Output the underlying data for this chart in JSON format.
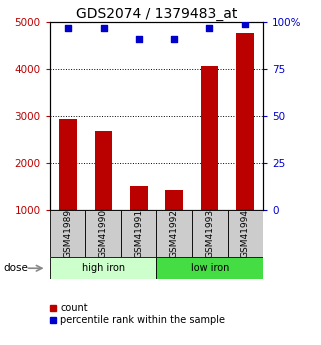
{
  "title": "GDS2074 / 1379483_at",
  "samples": [
    "GSM41989",
    "GSM41990",
    "GSM41991",
    "GSM41992",
    "GSM41993",
    "GSM41994"
  ],
  "bar_values": [
    2950,
    2700,
    1530,
    1440,
    4080,
    4780
  ],
  "percentile_values": [
    97,
    97,
    91,
    91,
    97,
    99
  ],
  "ylim_left": [
    1000,
    5000
  ],
  "ylim_right": [
    0,
    100
  ],
  "yticks_left": [
    1000,
    2000,
    3000,
    4000,
    5000
  ],
  "yticks_right": [
    0,
    25,
    50,
    75,
    100
  ],
  "bar_color": "#bb0000",
  "dot_color": "#0000cc",
  "group1_label": "high iron",
  "group2_label": "low iron",
  "group1_bg": "#ccffcc",
  "group2_bg": "#44dd44",
  "sample_box_bg": "#cccccc",
  "dose_label": "dose",
  "legend_count": "count",
  "legend_percentile": "percentile rank within the sample",
  "title_fontsize": 10,
  "tick_fontsize": 7.5,
  "label_fontsize": 7,
  "bar_width": 0.5,
  "right_ytick_labels": [
    "0",
    "25",
    "50",
    "75",
    "100%"
  ]
}
